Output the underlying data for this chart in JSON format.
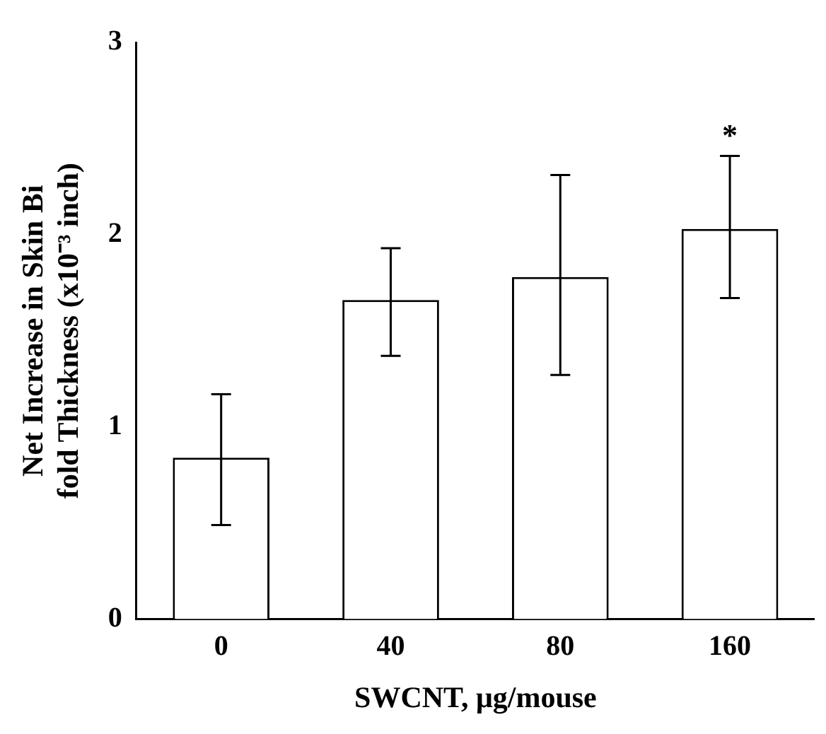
{
  "chart_data": {
    "type": "bar",
    "xlabel": "SWCNT, μg/mouse",
    "ylabel": "Net Increase in Skin Bi fold Thickness (x10⁻³ inch)",
    "categories": [
      "0",
      "40",
      "80",
      "160"
    ],
    "values": [
      0.84,
      1.66,
      1.78,
      2.03
    ],
    "errors": [
      [
        0.49,
        1.17
      ],
      [
        1.37,
        1.93
      ],
      [
        1.27,
        2.31
      ],
      [
        1.67,
        2.41
      ]
    ],
    "color": "#ffffff",
    "ylim": [
      0,
      3
    ],
    "yticks": [
      0,
      1,
      2,
      3
    ],
    "grid": false,
    "annotations": [
      {
        "text": "*",
        "x": "160",
        "y": 2.41
      }
    ]
  }
}
